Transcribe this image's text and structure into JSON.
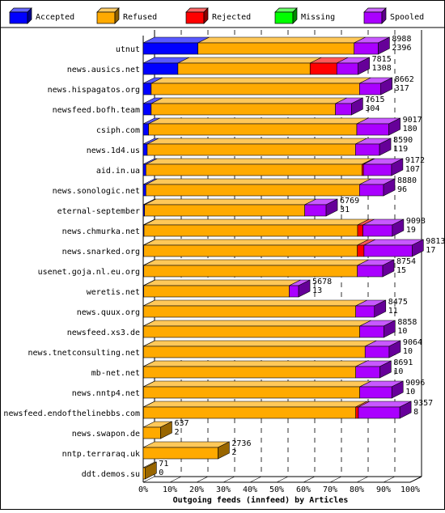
{
  "chart_data": {
    "type": "bar",
    "orientation": "horizontal",
    "stacked": true,
    "value_unit": "percent",
    "xlabel": "Outgoing feeds (innfeed) by Articles",
    "xticks": [
      "0%",
      "10%",
      "20%",
      "30%",
      "40%",
      "50%",
      "60%",
      "70%",
      "80%",
      "90%",
      "100%"
    ],
    "xlim": [
      0,
      100
    ],
    "legend_position": "top",
    "series": [
      {
        "name": "Accepted",
        "color": "#0000ff"
      },
      {
        "name": "Refused",
        "color": "#ffaa00"
      },
      {
        "name": "Rejected",
        "color": "#ff0000"
      },
      {
        "name": "Missing",
        "color": "#00ff00"
      },
      {
        "name": "Spooled",
        "color": "#aa00ff"
      }
    ],
    "rows": [
      {
        "label": "utnut",
        "total": "8988",
        "accepted_label": "2396",
        "values": [
          20.5,
          58.5,
          0,
          0,
          9
        ]
      },
      {
        "label": "news.ausics.net",
        "total": "7815",
        "accepted_label": "1308",
        "values": [
          13,
          49.5,
          10,
          0,
          8
        ]
      },
      {
        "label": "news.hispagatos.org",
        "total": "8662",
        "accepted_label": "317",
        "values": [
          3,
          78,
          0,
          0,
          8
        ]
      },
      {
        "label": "newsfeed.bofh.team",
        "total": "7615",
        "accepted_label": "304",
        "values": [
          3,
          69,
          0,
          0,
          6
        ]
      },
      {
        "label": "csiph.com",
        "total": "9017",
        "accepted_label": "180",
        "values": [
          2,
          78,
          0,
          0,
          12
        ]
      },
      {
        "label": "news.1d4.us",
        "total": "8590",
        "accepted_label": "119",
        "values": [
          1.5,
          78,
          0,
          0,
          9
        ]
      },
      {
        "label": "aid.in.ua",
        "total": "9172",
        "accepted_label": "107",
        "values": [
          1,
          81,
          0.5,
          0,
          10.5
        ]
      },
      {
        "label": "news.sonologic.net",
        "total": "8880",
        "accepted_label": "96",
        "values": [
          1,
          80,
          0,
          0,
          9
        ]
      },
      {
        "label": "eternal-september",
        "total": "6769",
        "accepted_label": "31",
        "values": [
          0.5,
          60,
          0,
          0,
          8
        ]
      },
      {
        "label": "news.chmurka.net",
        "total": "9098",
        "accepted_label": "19",
        "values": [
          0.3,
          80,
          2,
          0,
          11
        ]
      },
      {
        "label": "news.snarked.org",
        "total": "9813",
        "accepted_label": "17",
        "values": [
          0.2,
          80,
          2.5,
          0,
          18
        ]
      },
      {
        "label": "usenet.goja.nl.eu.org",
        "total": "8754",
        "accepted_label": "15",
        "values": [
          0.2,
          80,
          0,
          0,
          9.5
        ]
      },
      {
        "label": "weretis.net",
        "total": "5678",
        "accepted_label": "13",
        "values": [
          0.2,
          54.5,
          0,
          0,
          3.5
        ]
      },
      {
        "label": "news.quux.org",
        "total": "8475",
        "accepted_label": "11",
        "values": [
          0.1,
          79.5,
          0,
          0,
          7
        ]
      },
      {
        "label": "newsfeed.xs3.de",
        "total": "8858",
        "accepted_label": "10",
        "values": [
          0.1,
          81,
          0,
          0,
          9
        ]
      },
      {
        "label": "news.tnetconsulting.net",
        "total": "9064",
        "accepted_label": "10",
        "values": [
          0.1,
          83,
          0,
          0,
          9
        ]
      },
      {
        "label": "mb-net.net",
        "total": "8691",
        "accepted_label": "10",
        "values": [
          0.1,
          79.5,
          0,
          0,
          9
        ]
      },
      {
        "label": "news.nntp4.net",
        "total": "9096",
        "accepted_label": "10",
        "values": [
          0.1,
          81,
          0,
          0,
          12
        ]
      },
      {
        "label": "newsfeed.endofthelinebbs.com",
        "total": "9357",
        "accepted_label": "8",
        "values": [
          0.1,
          79.5,
          1,
          0,
          15.5
        ]
      },
      {
        "label": "news.swapon.de",
        "total": "637",
        "accepted_label": "2",
        "values": [
          0,
          6.5,
          0,
          0,
          0
        ]
      },
      {
        "label": "nntp.terraraq.uk",
        "total": "2736",
        "accepted_label": "2",
        "values": [
          0,
          28,
          0,
          0,
          0
        ]
      },
      {
        "label": "ddt.demos.su",
        "total": "71",
        "accepted_label": "0",
        "values": [
          0,
          0.7,
          0,
          0,
          0
        ]
      }
    ]
  }
}
